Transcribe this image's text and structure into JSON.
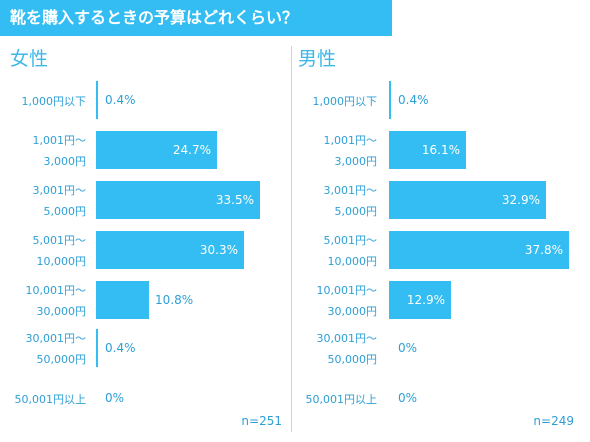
{
  "title": "靴を購入するときの予算はどれくらい？",
  "chart_data": [
    {
      "type": "bar",
      "orientation": "horizontal",
      "title": "女性",
      "categories": [
        [
          "1,000円以下"
        ],
        [
          "1,001円～",
          "3,000円"
        ],
        [
          "3,001円～",
          "5,000円"
        ],
        [
          "5,001円～",
          "10,000円"
        ],
        [
          "10,001円～",
          "30,000円"
        ],
        [
          "30,001円～",
          "50,000円"
        ],
        [
          "50,001円以上"
        ]
      ],
      "values": [
        0.4,
        24.7,
        33.5,
        30.3,
        10.8,
        0.4,
        0
      ],
      "value_labels": [
        "0.4%",
        "24.7%",
        "33.5%",
        "30.3%",
        "10.8%",
        "0.4%",
        "0%"
      ],
      "xlim": [
        0,
        40
      ],
      "sample_size": "n=251",
      "color": "#33bdf2"
    },
    {
      "type": "bar",
      "orientation": "horizontal",
      "title": "男性",
      "categories": [
        [
          "1,000円以下"
        ],
        [
          "1,001円～",
          "3,000円"
        ],
        [
          "3,001円～",
          "5,000円"
        ],
        [
          "5,001円～",
          "10,000円"
        ],
        [
          "10,001円～",
          "30,000円"
        ],
        [
          "30,001円～",
          "50,000円"
        ],
        [
          "50,001円以上"
        ]
      ],
      "values": [
        0.4,
        16.1,
        32.9,
        37.8,
        12.9,
        0,
        0
      ],
      "value_labels": [
        "0.4%",
        "16.1%",
        "32.9%",
        "37.8%",
        "12.9%",
        "0%",
        "0%"
      ],
      "xlim": [
        0,
        40
      ],
      "sample_size": "n=249",
      "color": "#33bdf2"
    }
  ]
}
